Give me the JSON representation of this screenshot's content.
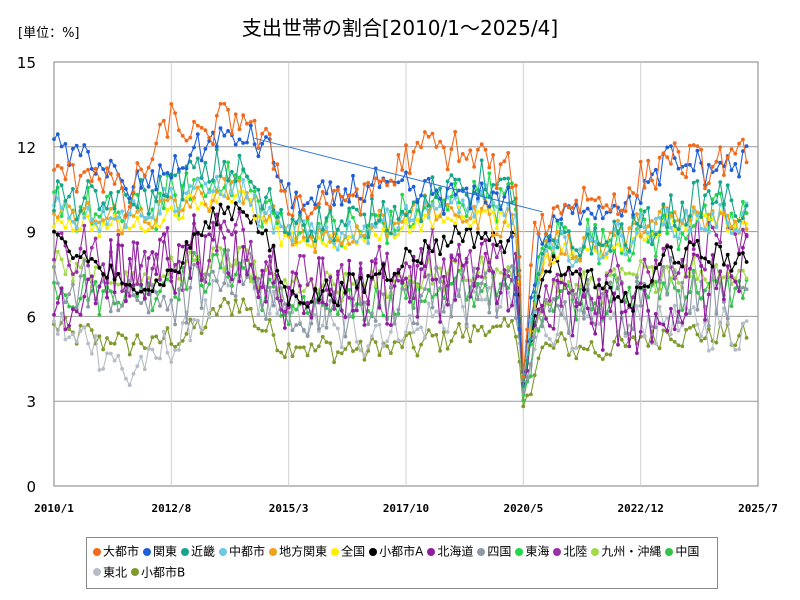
{
  "chart_data": {
    "type": "line",
    "unit_label": "[単位：%]",
    "title": "支出世帯の割合[2010/1～2025/4]",
    "xlabel": "",
    "ylabel": "",
    "x_ticks": [
      "2010/1",
      "2012/8",
      "2015/3",
      "2017/10",
      "2020/5",
      "2022/12",
      "2025/7"
    ],
    "y_ticks": [
      "0",
      "3",
      "6",
      "9",
      "12",
      "15"
    ],
    "ylim": [
      0,
      15
    ],
    "x_range": [
      "2010/1",
      "2025/7"
    ],
    "grid": true,
    "legend_position": "bottom",
    "trend_line": {
      "from": [
        "2014/6",
        12.3
      ],
      "to": [
        "2020/10",
        9.7
      ],
      "color": "#2e75d6"
    },
    "series": [
      {
        "name": "大都市",
        "color": "#f26a1b",
        "keypoints": [
          [
            2010.0,
            11.0
          ],
          [
            2011.0,
            11.2
          ],
          [
            2011.6,
            10.0
          ],
          [
            2012.6,
            13.0
          ],
          [
            2013.2,
            12.2
          ],
          [
            2014.0,
            13.2
          ],
          [
            2014.6,
            12.3
          ],
          [
            2015.3,
            9.8
          ],
          [
            2017.0,
            10.4
          ],
          [
            2018.2,
            12.1
          ],
          [
            2019.4,
            11.6
          ],
          [
            2020.2,
            10.8
          ],
          [
            2020.33,
            3.8
          ],
          [
            2020.6,
            9.2
          ],
          [
            2021.5,
            10.2
          ],
          [
            2022.5,
            10.0
          ],
          [
            2023.5,
            11.7
          ],
          [
            2024.5,
            11.2
          ],
          [
            2025.25,
            11.8
          ]
        ],
        "amp": 0.6
      },
      {
        "name": "関東",
        "color": "#1f5fd6",
        "keypoints": [
          [
            2010.0,
            11.9
          ],
          [
            2011.0,
            11.5
          ],
          [
            2011.6,
            10.4
          ],
          [
            2012.6,
            11.2
          ],
          [
            2013.5,
            12.3
          ],
          [
            2014.6,
            12.2
          ],
          [
            2015.3,
            9.9
          ],
          [
            2017.0,
            10.6
          ],
          [
            2019.0,
            10.2
          ],
          [
            2020.0,
            10.3
          ],
          [
            2020.33,
            4.0
          ],
          [
            2020.7,
            8.8
          ],
          [
            2021.5,
            9.8
          ],
          [
            2022.8,
            10.0
          ],
          [
            2023.5,
            11.5
          ],
          [
            2024.5,
            11.2
          ],
          [
            2025.25,
            11.5
          ]
        ],
        "amp": 0.5
      },
      {
        "name": "近畿",
        "color": "#17a589",
        "keypoints": [
          [
            2010.0,
            10.2
          ],
          [
            2011.0,
            10.0
          ],
          [
            2012.0,
            10.2
          ],
          [
            2013.0,
            11.0
          ],
          [
            2014.0,
            11.3
          ],
          [
            2015.0,
            9.4
          ],
          [
            2016.5,
            9.3
          ],
          [
            2018.0,
            10.0
          ],
          [
            2019.5,
            10.8
          ],
          [
            2020.2,
            10.2
          ],
          [
            2020.33,
            3.5
          ],
          [
            2020.8,
            8.5
          ],
          [
            2022.0,
            8.6
          ],
          [
            2023.5,
            9.5
          ],
          [
            2024.5,
            10.3
          ],
          [
            2025.25,
            9.8
          ]
        ],
        "amp": 0.6
      },
      {
        "name": "中都市",
        "color": "#6ec8e8",
        "keypoints": [
          [
            2010.0,
            9.8
          ],
          [
            2011.0,
            9.6
          ],
          [
            2012.0,
            9.8
          ],
          [
            2013.0,
            10.5
          ],
          [
            2014.0,
            10.6
          ],
          [
            2015.0,
            9.0
          ],
          [
            2016.5,
            8.9
          ],
          [
            2018.0,
            9.8
          ],
          [
            2019.5,
            10.0
          ],
          [
            2020.2,
            9.5
          ],
          [
            2020.33,
            3.9
          ],
          [
            2020.8,
            8.3
          ],
          [
            2022.0,
            8.5
          ],
          [
            2023.5,
            9.3
          ],
          [
            2025.25,
            9.5
          ]
        ],
        "amp": 0.5
      },
      {
        "name": "地方関東",
        "color": "#f0a21c",
        "keypoints": [
          [
            2010.0,
            9.6
          ],
          [
            2011.5,
            9.4
          ],
          [
            2013.0,
            10.0
          ],
          [
            2014.0,
            10.6
          ],
          [
            2015.0,
            9.0
          ],
          [
            2016.5,
            8.8
          ],
          [
            2018.0,
            9.8
          ],
          [
            2019.5,
            9.5
          ],
          [
            2020.2,
            9.2
          ],
          [
            2020.33,
            3.8
          ],
          [
            2020.8,
            8.4
          ],
          [
            2022.0,
            8.6
          ],
          [
            2023.5,
            9.5
          ],
          [
            2025.25,
            9.4
          ]
        ],
        "amp": 0.5
      },
      {
        "name": "全国",
        "color": "#ffee00",
        "keypoints": [
          [
            2010.0,
            9.4
          ],
          [
            2011.0,
            9.2
          ],
          [
            2012.0,
            9.2
          ],
          [
            2013.0,
            10.0
          ],
          [
            2014.0,
            10.4
          ],
          [
            2015.0,
            8.7
          ],
          [
            2016.5,
            8.6
          ],
          [
            2018.0,
            9.3
          ],
          [
            2019.5,
            9.6
          ],
          [
            2020.2,
            9.3
          ],
          [
            2020.33,
            3.9
          ],
          [
            2020.8,
            8.2
          ],
          [
            2022.0,
            8.3
          ],
          [
            2023.5,
            9.2
          ],
          [
            2024.5,
            9.4
          ],
          [
            2025.25,
            9.2
          ]
        ],
        "amp": 0.3
      },
      {
        "name": "小都市A",
        "color": "#000000",
        "keypoints": [
          [
            2010.0,
            8.6
          ],
          [
            2011.0,
            7.8
          ],
          [
            2011.5,
            7.0
          ],
          [
            2012.5,
            7.3
          ],
          [
            2013.3,
            9.2
          ],
          [
            2014.0,
            10.0
          ],
          [
            2014.5,
            9.3
          ],
          [
            2015.2,
            6.6
          ],
          [
            2016.5,
            7.0
          ],
          [
            2018.0,
            8.2
          ],
          [
            2019.0,
            9.0
          ],
          [
            2020.2,
            8.5
          ],
          [
            2020.33,
            4.0
          ],
          [
            2020.8,
            8.0
          ],
          [
            2022.0,
            7.0
          ],
          [
            2022.8,
            6.5
          ],
          [
            2023.5,
            8.2
          ],
          [
            2024.5,
            8.2
          ],
          [
            2025.25,
            7.8
          ]
        ],
        "amp": 0.4
      },
      {
        "name": "北海道",
        "color": "#8e1e9e",
        "keypoints": [
          [
            2010.0,
            6.2
          ],
          [
            2011.0,
            7.5
          ],
          [
            2012.0,
            7.6
          ],
          [
            2013.0,
            8.0
          ],
          [
            2014.0,
            8.2
          ],
          [
            2015.0,
            7.0
          ],
          [
            2016.5,
            6.8
          ],
          [
            2018.0,
            7.2
          ],
          [
            2019.5,
            7.4
          ],
          [
            2020.2,
            6.8
          ],
          [
            2020.33,
            3.6
          ],
          [
            2020.8,
            6.2
          ],
          [
            2022.0,
            6.0
          ],
          [
            2023.0,
            5.5
          ],
          [
            2024.0,
            7.0
          ],
          [
            2025.25,
            7.5
          ]
        ],
        "amp": 1.2
      },
      {
        "name": "四国",
        "color": "#8e99a6",
        "keypoints": [
          [
            2010.0,
            7.2
          ],
          [
            2011.0,
            6.8
          ],
          [
            2012.0,
            6.5
          ],
          [
            2013.0,
            6.6
          ],
          [
            2014.0,
            7.8
          ],
          [
            2015.0,
            6.3
          ],
          [
            2016.5,
            6.2
          ],
          [
            2018.0,
            6.8
          ],
          [
            2019.5,
            7.0
          ],
          [
            2020.2,
            6.5
          ],
          [
            2020.33,
            3.3
          ],
          [
            2020.8,
            6.3
          ],
          [
            2022.0,
            6.3
          ],
          [
            2023.5,
            7.0
          ],
          [
            2025.25,
            6.8
          ]
        ],
        "amp": 1.0
      },
      {
        "name": "東海",
        "color": "#21d94b",
        "keypoints": [
          [
            2010.0,
            10.0
          ],
          [
            2011.0,
            9.6
          ],
          [
            2012.0,
            9.7
          ],
          [
            2013.0,
            10.5
          ],
          [
            2014.0,
            11.0
          ],
          [
            2015.0,
            9.2
          ],
          [
            2016.5,
            9.0
          ],
          [
            2018.0,
            9.6
          ],
          [
            2019.5,
            10.5
          ],
          [
            2020.2,
            9.8
          ],
          [
            2020.33,
            3.6
          ],
          [
            2020.8,
            8.8
          ],
          [
            2022.0,
            8.7
          ],
          [
            2023.5,
            9.0
          ],
          [
            2024.5,
            9.6
          ],
          [
            2025.25,
            9.4
          ]
        ],
        "amp": 0.7
      },
      {
        "name": "北陸",
        "color": "#9b2fa7",
        "keypoints": [
          [
            2010.0,
            8.5
          ],
          [
            2011.0,
            8.0
          ],
          [
            2012.0,
            7.8
          ],
          [
            2013.0,
            8.2
          ],
          [
            2014.0,
            9.0
          ],
          [
            2015.0,
            7.4
          ],
          [
            2016.5,
            7.2
          ],
          [
            2018.0,
            7.8
          ],
          [
            2019.5,
            8.0
          ],
          [
            2020.2,
            7.6
          ],
          [
            2020.33,
            3.8
          ],
          [
            2020.8,
            7.0
          ],
          [
            2022.0,
            7.0
          ],
          [
            2023.5,
            8.0
          ],
          [
            2024.5,
            9.0
          ],
          [
            2025.25,
            8.0
          ]
        ],
        "amp": 1.0
      },
      {
        "name": "九州・沖縄",
        "color": "#a3d94a",
        "keypoints": [
          [
            2010.0,
            7.8
          ],
          [
            2011.0,
            7.4
          ],
          [
            2012.0,
            7.3
          ],
          [
            2013.0,
            7.8
          ],
          [
            2014.0,
            8.0
          ],
          [
            2015.0,
            7.0
          ],
          [
            2016.5,
            7.0
          ],
          [
            2018.0,
            7.4
          ],
          [
            2019.5,
            7.6
          ],
          [
            2020.2,
            7.2
          ],
          [
            2020.33,
            3.7
          ],
          [
            2020.8,
            7.0
          ],
          [
            2022.0,
            7.1
          ],
          [
            2023.5,
            7.6
          ],
          [
            2025.25,
            7.5
          ]
        ],
        "amp": 0.5
      },
      {
        "name": "中国",
        "color": "#33c24a",
        "keypoints": [
          [
            2010.0,
            7.0
          ],
          [
            2011.0,
            6.8
          ],
          [
            2012.0,
            6.9
          ],
          [
            2013.0,
            7.5
          ],
          [
            2014.0,
            7.8
          ],
          [
            2015.0,
            6.3
          ],
          [
            2016.5,
            6.2
          ],
          [
            2018.0,
            6.8
          ],
          [
            2019.5,
            7.0
          ],
          [
            2020.2,
            6.8
          ],
          [
            2020.33,
            3.0
          ],
          [
            2020.8,
            6.8
          ],
          [
            2022.0,
            6.6
          ],
          [
            2023.5,
            7.0
          ],
          [
            2025.25,
            7.0
          ]
        ],
        "amp": 0.6
      },
      {
        "name": "東北",
        "color": "#b5bec6",
        "keypoints": [
          [
            2010.0,
            5.5
          ],
          [
            2011.0,
            5.0
          ],
          [
            2011.6,
            3.9
          ],
          [
            2012.5,
            4.8
          ],
          [
            2013.0,
            5.6
          ],
          [
            2014.0,
            7.6
          ],
          [
            2015.0,
            6.2
          ],
          [
            2016.5,
            5.4
          ],
          [
            2018.0,
            5.6
          ],
          [
            2019.5,
            6.8
          ],
          [
            2020.2,
            6.2
          ],
          [
            2020.33,
            3.2
          ],
          [
            2020.8,
            5.8
          ],
          [
            2022.0,
            5.6
          ],
          [
            2023.5,
            5.8
          ],
          [
            2025.25,
            5.5
          ]
        ],
        "amp": 0.7
      },
      {
        "name": "小都市B",
        "color": "#7f9a2f",
        "keypoints": [
          [
            2010.0,
            5.6
          ],
          [
            2011.0,
            5.2
          ],
          [
            2012.0,
            5.0
          ],
          [
            2013.0,
            5.4
          ],
          [
            2014.0,
            6.6
          ],
          [
            2015.0,
            5.0
          ],
          [
            2016.5,
            4.8
          ],
          [
            2018.0,
            5.0
          ],
          [
            2019.5,
            5.6
          ],
          [
            2020.2,
            5.4
          ],
          [
            2020.33,
            2.8
          ],
          [
            2020.8,
            5.0
          ],
          [
            2022.0,
            4.8
          ],
          [
            2023.5,
            5.4
          ],
          [
            2025.25,
            5.3
          ]
        ],
        "amp": 0.4
      }
    ]
  }
}
